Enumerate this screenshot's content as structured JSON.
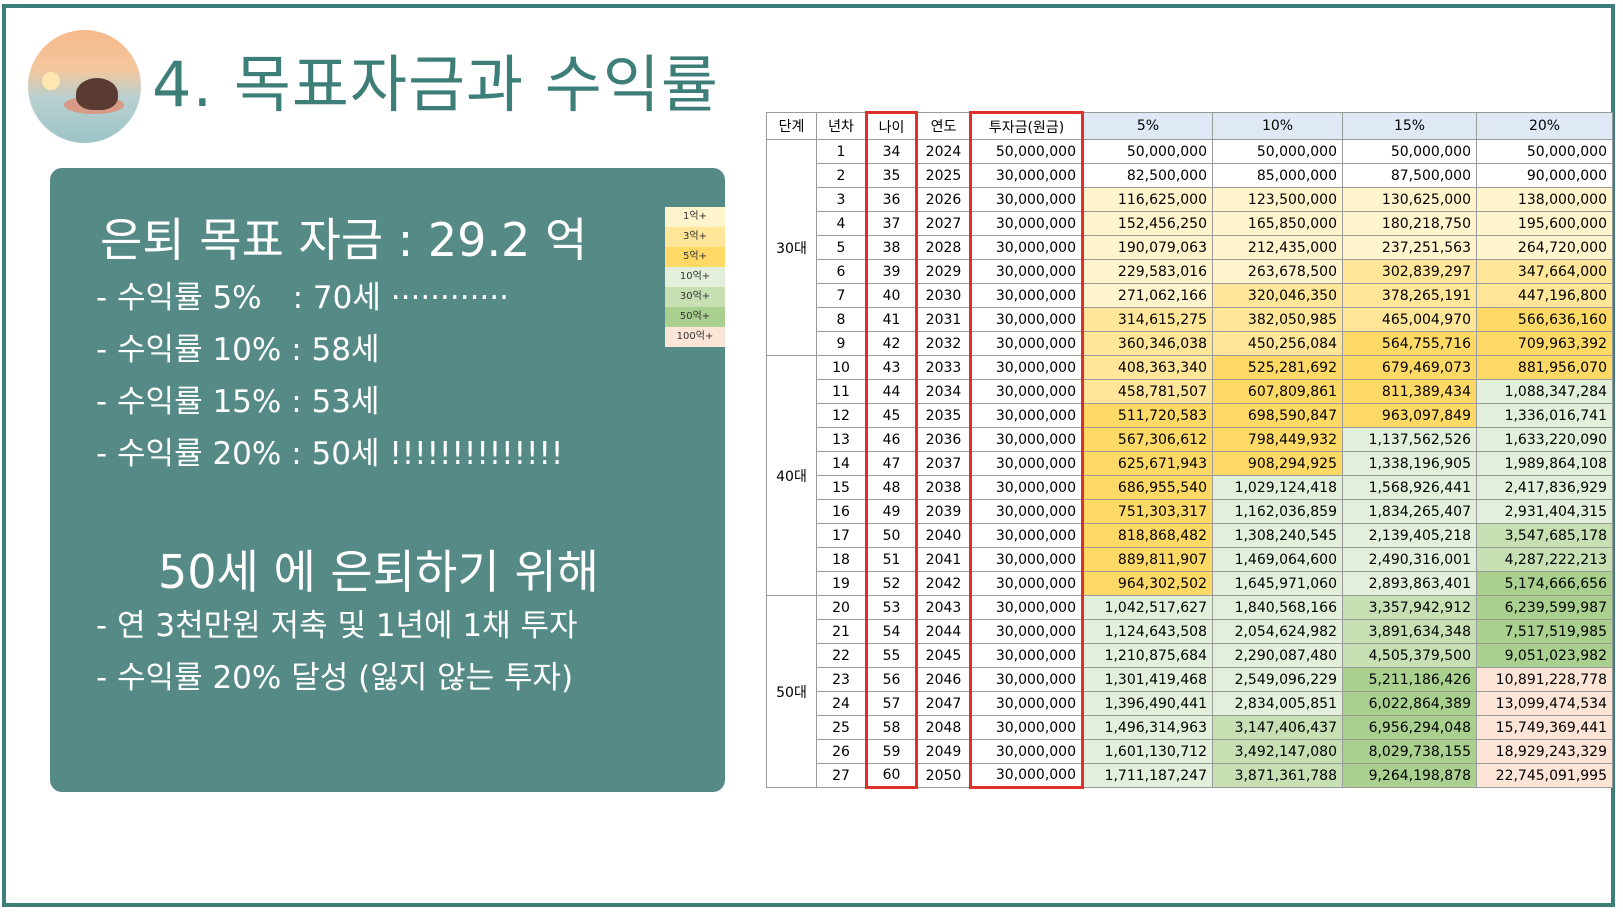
{
  "title": "4. 목표자금과 수익률",
  "panel": {
    "heading": "은퇴 목표 자금 : 29.2 억",
    "lines": [
      "- 수익률 5%　: 70세 ············",
      "- 수익률 10% : 58세",
      "- 수익률 15% : 53세",
      "- 수익률 20% : 50세 !!!!!!!!!!!!!!"
    ],
    "heading2": "50세 에 은퇴하기 위해",
    "lines2": [
      "- 연 3천만원 저축 및 1년에 1채 투자",
      "- 수익률 20% 달성 (잃지 않는 투자)"
    ]
  },
  "legend": [
    {
      "label": "1억+",
      "color": "#fff4cc"
    },
    {
      "label": "3억+",
      "color": "#ffe699"
    },
    {
      "label": "5억+",
      "color": "#ffd966"
    },
    {
      "label": "10억+",
      "color": "#e2efda"
    },
    {
      "label": "30억+",
      "color": "#c6e0b4"
    },
    {
      "label": "50억+",
      "color": "#a9d08e"
    },
    {
      "label": "100억+",
      "color": "#fce4d6"
    }
  ],
  "table": {
    "headers": [
      "단계",
      "년차",
      "나이",
      "연도",
      "투자금(원금)",
      "5%",
      "10%",
      "15%",
      "20%"
    ],
    "stages": [
      {
        "label": "30대",
        "rows": 9
      },
      {
        "label": "40대",
        "rows": 10
      },
      {
        "label": "50대",
        "rows": 8
      }
    ],
    "rows": [
      [
        "1",
        "34",
        "2024",
        "50,000,000",
        "50,000,000",
        "50,000,000",
        "50,000,000",
        "50,000,000"
      ],
      [
        "2",
        "35",
        "2025",
        "30,000,000",
        "82,500,000",
        "85,000,000",
        "87,500,000",
        "90,000,000"
      ],
      [
        "3",
        "36",
        "2026",
        "30,000,000",
        "116,625,000",
        "123,500,000",
        "130,625,000",
        "138,000,000"
      ],
      [
        "4",
        "37",
        "2027",
        "30,000,000",
        "152,456,250",
        "165,850,000",
        "180,218,750",
        "195,600,000"
      ],
      [
        "5",
        "38",
        "2028",
        "30,000,000",
        "190,079,063",
        "212,435,000",
        "237,251,563",
        "264,720,000"
      ],
      [
        "6",
        "39",
        "2029",
        "30,000,000",
        "229,583,016",
        "263,678,500",
        "302,839,297",
        "347,664,000"
      ],
      [
        "7",
        "40",
        "2030",
        "30,000,000",
        "271,062,166",
        "320,046,350",
        "378,265,191",
        "447,196,800"
      ],
      [
        "8",
        "41",
        "2031",
        "30,000,000",
        "314,615,275",
        "382,050,985",
        "465,004,970",
        "566,636,160"
      ],
      [
        "9",
        "42",
        "2032",
        "30,000,000",
        "360,346,038",
        "450,256,084",
        "564,755,716",
        "709,963,392"
      ],
      [
        "10",
        "43",
        "2033",
        "30,000,000",
        "408,363,340",
        "525,281,692",
        "679,469,073",
        "881,956,070"
      ],
      [
        "11",
        "44",
        "2034",
        "30,000,000",
        "458,781,507",
        "607,809,861",
        "811,389,434",
        "1,088,347,284"
      ],
      [
        "12",
        "45",
        "2035",
        "30,000,000",
        "511,720,583",
        "698,590,847",
        "963,097,849",
        "1,336,016,741"
      ],
      [
        "13",
        "46",
        "2036",
        "30,000,000",
        "567,306,612",
        "798,449,932",
        "1,137,562,526",
        "1,633,220,090"
      ],
      [
        "14",
        "47",
        "2037",
        "30,000,000",
        "625,671,943",
        "908,294,925",
        "1,338,196,905",
        "1,989,864,108"
      ],
      [
        "15",
        "48",
        "2038",
        "30,000,000",
        "686,955,540",
        "1,029,124,418",
        "1,568,926,441",
        "2,417,836,929"
      ],
      [
        "16",
        "49",
        "2039",
        "30,000,000",
        "751,303,317",
        "1,162,036,859",
        "1,834,265,407",
        "2,931,404,315"
      ],
      [
        "17",
        "50",
        "2040",
        "30,000,000",
        "818,868,482",
        "1,308,240,545",
        "2,139,405,218",
        "3,547,685,178"
      ],
      [
        "18",
        "51",
        "2041",
        "30,000,000",
        "889,811,907",
        "1,469,064,600",
        "2,490,316,001",
        "4,287,222,213"
      ],
      [
        "19",
        "52",
        "2042",
        "30,000,000",
        "964,302,502",
        "1,645,971,060",
        "2,893,863,401",
        "5,174,666,656"
      ],
      [
        "20",
        "53",
        "2043",
        "30,000,000",
        "1,042,517,627",
        "1,840,568,166",
        "3,357,942,912",
        "6,239,599,987"
      ],
      [
        "21",
        "54",
        "2044",
        "30,000,000",
        "1,124,643,508",
        "2,054,624,982",
        "3,891,634,348",
        "7,517,519,985"
      ],
      [
        "22",
        "55",
        "2045",
        "30,000,000",
        "1,210,875,684",
        "2,290,087,480",
        "4,505,379,500",
        "9,051,023,982"
      ],
      [
        "23",
        "56",
        "2046",
        "30,000,000",
        "1,301,419,468",
        "2,549,096,229",
        "5,211,186,426",
        "10,891,228,778"
      ],
      [
        "24",
        "57",
        "2047",
        "30,000,000",
        "1,396,490,441",
        "2,834,005,851",
        "6,022,864,389",
        "13,099,474,534"
      ],
      [
        "25",
        "58",
        "2048",
        "30,000,000",
        "1,496,314,963",
        "3,147,406,437",
        "6,956,294,048",
        "15,749,369,441"
      ],
      [
        "26",
        "59",
        "2049",
        "30,000,000",
        "1,601,130,712",
        "3,492,147,080",
        "8,029,738,155",
        "18,929,243,329"
      ],
      [
        "27",
        "60",
        "2050",
        "30,000,000",
        "1,711,187,247",
        "3,871,361,788",
        "9,264,198,878",
        "22,745,091,995"
      ]
    ]
  }
}
